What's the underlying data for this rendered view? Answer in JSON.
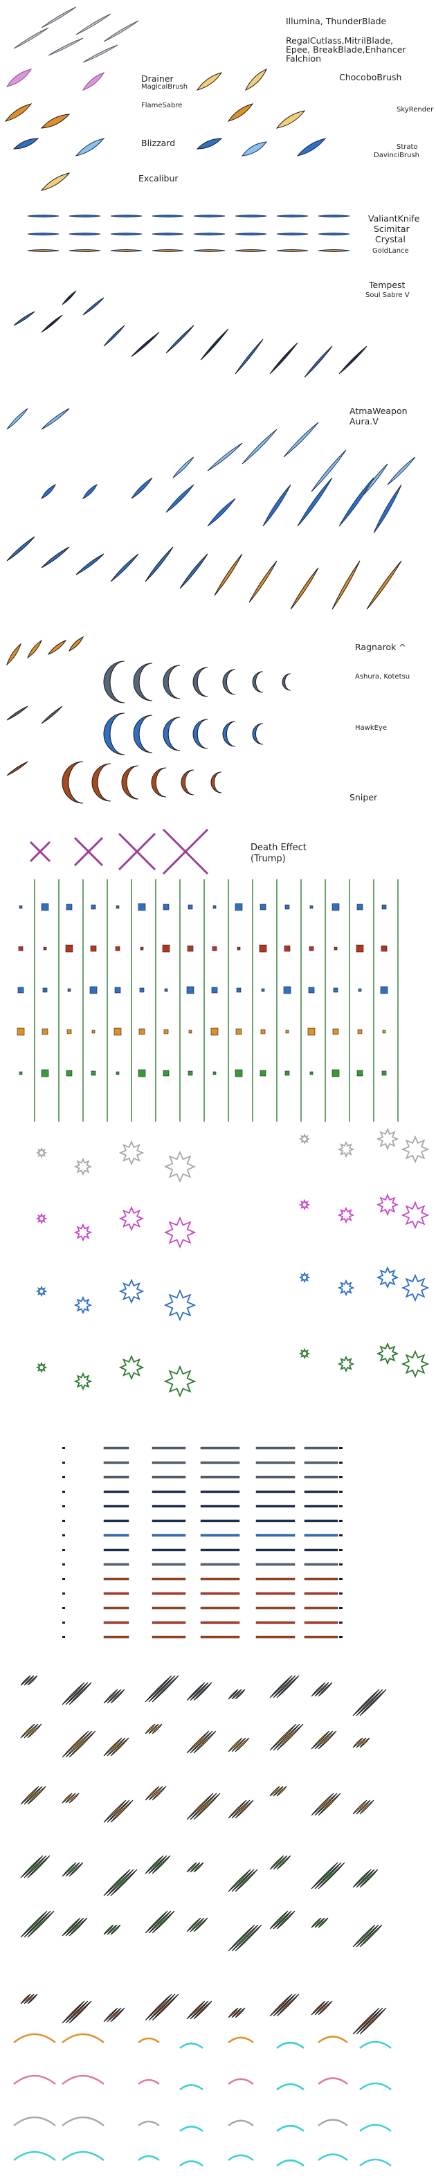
{
  "sheet": {
    "labels": {
      "illumina": "Illumina, ThunderBlade",
      "regal_1": "RegalCutlass,MitrilBlade,",
      "regal_2": "Epee, BreakBlade,Enhancer",
      "regal_3": "Falchion",
      "drainer": "Drainer",
      "magicalbrush": "MagicalBrush",
      "chocobobrush": "ChocoboBrush",
      "flamesabre": "FlameSabre",
      "skyrender": "SkyRender",
      "blizzard": "Blizzard",
      "strato": "Strato",
      "davincibrush": "DavinciBrush",
      "excalibur": "Excalibur",
      "valiantknife": "ValiantKnife",
      "scimitar": "Scimitar",
      "crystal": "Crystal",
      "goldlance": "GoldLance",
      "tempest": "Tempest",
      "soulsabre": "Soul Sabre V",
      "atmaweapon": "AtmaWeapon",
      "aura": "Aura.V",
      "ragnarok": "Ragnarok ^",
      "ashura": "Ashura, Kotetsu",
      "hawkeye": "HawkEye",
      "sniper": "Sniper",
      "death_effect": "Death Effect",
      "trump": "(Trump)"
    }
  },
  "palette": {
    "purple": "#9b3f9b",
    "purple_light": "#d79ad7",
    "orange": "#e0902a",
    "orange_light": "#f4cf7a",
    "blue": "#2f6fc4",
    "blue_light": "#8cc2ee",
    "navy": "#1c3057",
    "red": "#b5361c",
    "rust": "#a54a1c",
    "green": "#3a9a3a",
    "darkgreen": "#2e7a32",
    "slate": "#56667a",
    "gray": "#a5a9ad",
    "cyan": "#3ecfd4",
    "pink": "#e07a9a",
    "magenta": "#c74ac7",
    "dark": "#1c1c1c"
  }
}
